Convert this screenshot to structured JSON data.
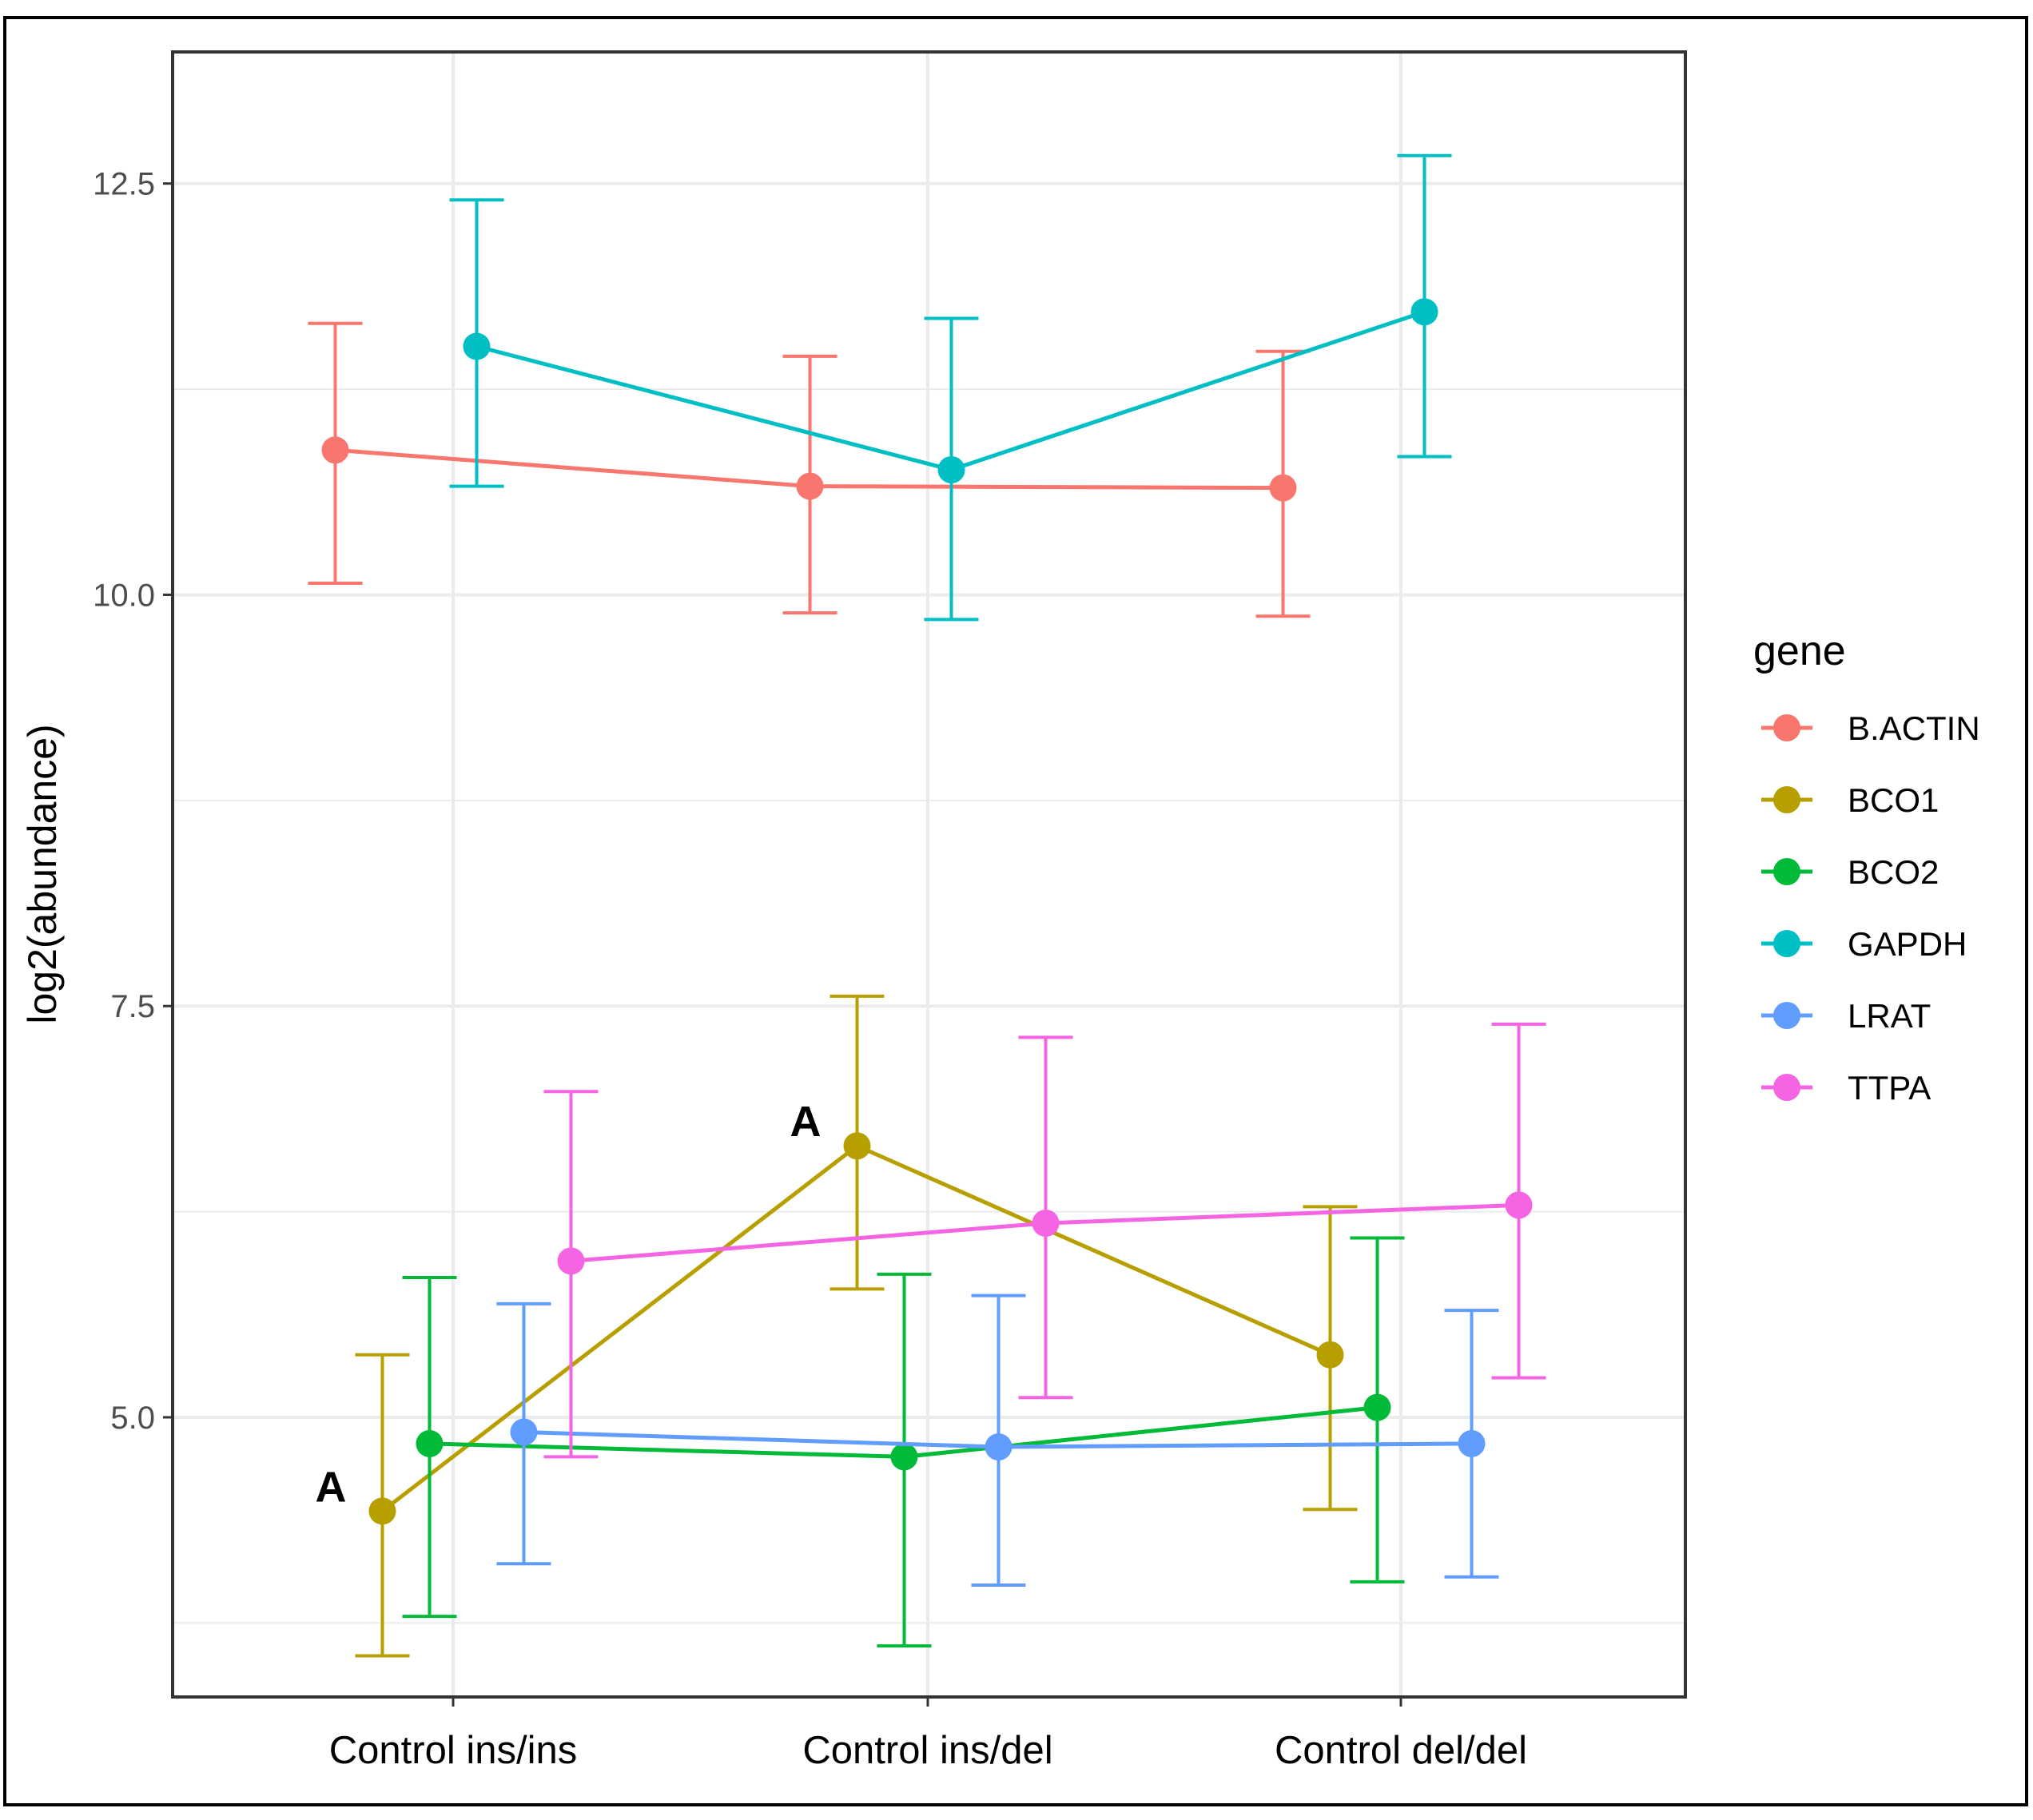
{
  "chart_data": {
    "type": "line",
    "subtype": "dot-and-errorbar (mean ± interval) by group",
    "title": "",
    "xlabel": "",
    "ylabel": "log2(abundance)",
    "categories": [
      "Control ins/ins",
      "Control ins/del",
      "Control del/del"
    ],
    "ylim": [
      3.3,
      13.3
    ],
    "yticks": [
      5.0,
      7.5,
      10.0,
      12.5
    ],
    "yticklabels": [
      "5.0",
      "7.5",
      "10.0",
      "12.5"
    ],
    "grid": true,
    "legend": {
      "title": "gene",
      "position": "right"
    },
    "series": [
      {
        "name": "B.ACTIN",
        "color": "#F8766D",
        "values": [
          10.88,
          10.66,
          10.65
        ],
        "lower": [
          10.07,
          9.89,
          9.87
        ],
        "upper": [
          11.65,
          11.45,
          11.48
        ]
      },
      {
        "name": "BCO1",
        "color": "#B79F00",
        "values": [
          4.43,
          6.65,
          5.38
        ],
        "lower": [
          3.55,
          5.78,
          4.44
        ],
        "upper": [
          5.38,
          7.56,
          6.28
        ]
      },
      {
        "name": "BCO2",
        "color": "#00BA38",
        "values": [
          4.84,
          4.76,
          5.06
        ],
        "lower": [
          3.79,
          3.61,
          4.0
        ],
        "upper": [
          5.85,
          5.87,
          6.09
        ]
      },
      {
        "name": "GAPDH",
        "color": "#00BFC4",
        "values": [
          11.51,
          10.76,
          11.72
        ],
        "lower": [
          10.66,
          9.85,
          10.84
        ],
        "upper": [
          12.4,
          11.68,
          12.67
        ]
      },
      {
        "name": "LRAT",
        "color": "#619CFF",
        "values": [
          4.91,
          4.82,
          4.84
        ],
        "lower": [
          4.11,
          3.98,
          4.03
        ],
        "upper": [
          5.69,
          5.74,
          5.65
        ]
      },
      {
        "name": "TTPA",
        "color": "#F564E3",
        "values": [
          5.95,
          6.18,
          6.29
        ],
        "lower": [
          4.76,
          5.12,
          5.24
        ],
        "upper": [
          6.98,
          7.31,
          7.39
        ]
      }
    ],
    "annotations": [
      {
        "text": "A",
        "series": "BCO1",
        "category": "Control ins/ins"
      },
      {
        "text": "A",
        "series": "BCO1",
        "category": "Control ins/del"
      }
    ]
  }
}
